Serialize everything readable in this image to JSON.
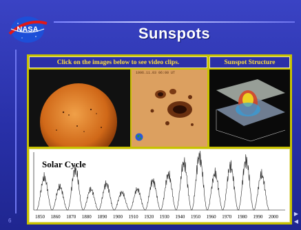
{
  "slide": {
    "title": "Sunspots",
    "number": "6",
    "logo_icon": "nasa-meatball-logo",
    "background": "#2f37b6"
  },
  "panel": {
    "border_color": "#c8c200",
    "label_color": "#ffe03a",
    "instruction_label": "Click on the images below to see video clips.",
    "structure_label": "Sunspot Structure"
  },
  "clips": [
    {
      "name": "full-sun-video-clip",
      "icon": "sun-disk-image"
    },
    {
      "name": "sunspot-closeup-video-clip",
      "timestamp": "1996.11.03 06:00 UT",
      "icon": "earth-scale-icon"
    },
    {
      "name": "sunspot-structure-video-clip",
      "icon": "3d-structure-plot-image"
    }
  ],
  "solar_cycle": {
    "title": "Solar Cycle",
    "years": [
      "1850",
      "1860",
      "1870",
      "1880",
      "1890",
      "1900",
      "1910",
      "1920",
      "1930",
      "1940",
      "1950",
      "1960",
      "1970",
      "1980",
      "1990",
      "2000"
    ]
  },
  "nav": {
    "next_icon": "next-slide-icon",
    "prev_icon": "previous-slide-icon",
    "next_glyph": "▶",
    "prev_glyph": "◀"
  }
}
